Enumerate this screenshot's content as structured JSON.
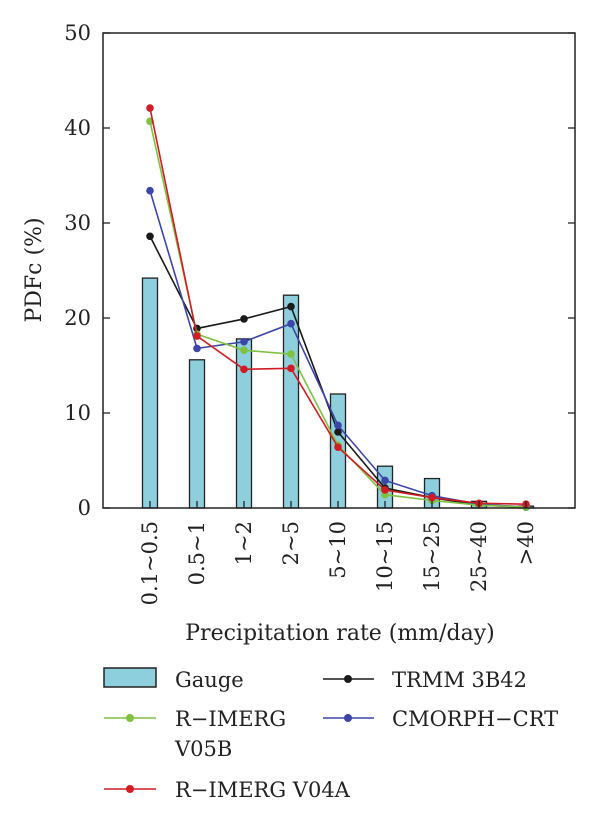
{
  "chart_data": {
    "type": "bar",
    "xlabel": "Precipitation rate (mm/day)",
    "ylabel": "PDFc (%)",
    "ylim": [
      0,
      50
    ],
    "yticks": [
      0,
      10,
      20,
      30,
      40,
      50
    ],
    "categories": [
      "0.1~0.5",
      "0.5~1",
      "1~2",
      "2~5",
      "5~10",
      "10~15",
      "15~25",
      "25~40",
      ">40"
    ],
    "bar_series": {
      "name": "Gauge",
      "color": "#8ecfde",
      "values": [
        24.2,
        15.6,
        17.8,
        22.4,
        12.0,
        4.4,
        3.1,
        0.7,
        0.2
      ]
    },
    "line_series": [
      {
        "name": "TRMM 3B42",
        "color": "#1a1a1a",
        "values": [
          28.6,
          18.9,
          19.9,
          21.2,
          8.0,
          2.1,
          1.1,
          0.3,
          0.1
        ]
      },
      {
        "name": "CMORPH−CRT",
        "color": "#3b46a8",
        "values": [
          33.4,
          16.8,
          17.5,
          19.4,
          8.7,
          2.9,
          1.3,
          0.4,
          0.1
        ]
      },
      {
        "name": "R−IMERG V05B",
        "color": "#7fc241",
        "values": [
          40.7,
          18.3,
          16.6,
          16.2,
          6.6,
          1.4,
          0.8,
          0.3,
          0.1
        ]
      },
      {
        "name": "R−IMERG V04A",
        "color": "#d01c24",
        "values": [
          42.1,
          18.1,
          14.6,
          14.7,
          6.4,
          1.9,
          1.1,
          0.5,
          0.4
        ]
      }
    ],
    "grid": false,
    "legend_position": "bottom"
  },
  "legend": {
    "gauge": "Gauge",
    "trmm": "TRMM 3B42",
    "v05b_line1": "R−IMERG",
    "v05b_line2": "V05B",
    "cmorph": "CMORPH−CRT",
    "v04a": "R−IMERG V04A"
  }
}
